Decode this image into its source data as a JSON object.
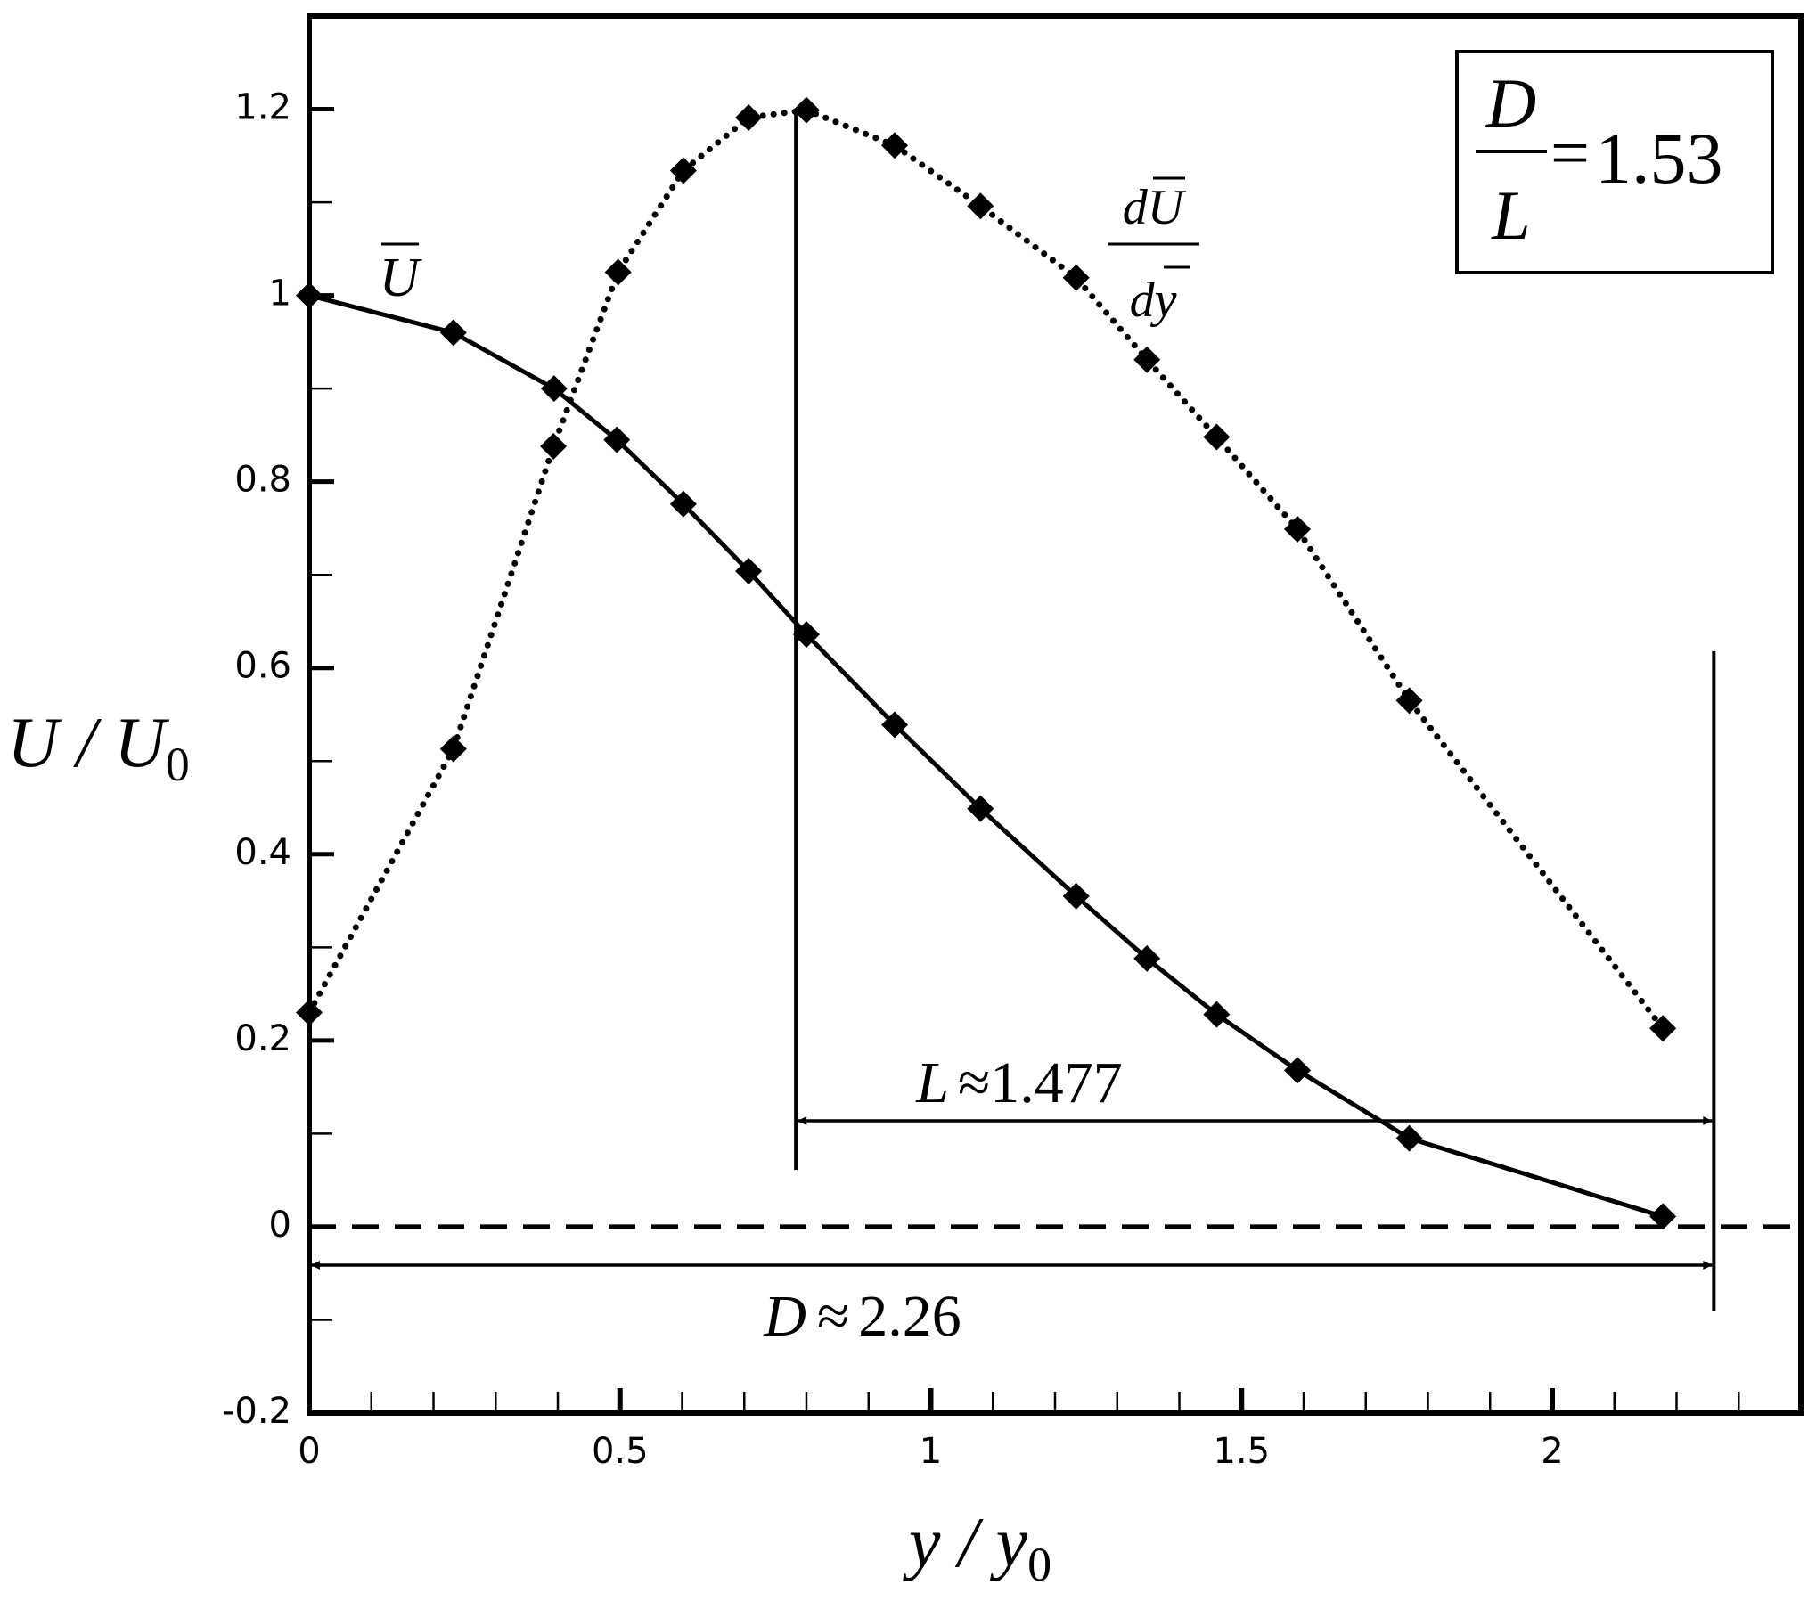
{
  "chart_data": {
    "type": "line",
    "xlabel": {
      "text": "y / y",
      "subscript": "0"
    },
    "ylabel": {
      "text": "U / U",
      "subscript": "0"
    },
    "xlim": [
      0,
      2.4
    ],
    "ylim": [
      -0.2,
      1.3
    ],
    "xticks": [
      0,
      0.5,
      1,
      1.5,
      2
    ],
    "yticks": [
      -0.2,
      0,
      0.2,
      0.4,
      0.6,
      0.8,
      1,
      1.2
    ],
    "x_minor_ticks": [
      0.1,
      0.2,
      0.3,
      0.4,
      0.6,
      0.7,
      0.8,
      0.9,
      1.1,
      1.2,
      1.3,
      1.4,
      1.6,
      1.7,
      1.8,
      1.9,
      2.1,
      2.2,
      2.3
    ],
    "y_minor_ticks": [
      -0.1,
      0.1,
      0.3,
      0.5,
      0.7,
      0.9,
      1.1
    ],
    "series": [
      {
        "name": "U",
        "color": "#000000",
        "style": "solid",
        "x": [
          0,
          0.232,
          0.394,
          0.495,
          0.602,
          0.707,
          0.8,
          0.942,
          1.08,
          1.234,
          1.348,
          1.46,
          1.59,
          1.77,
          2.178
        ],
        "values": [
          1.0,
          0.96,
          0.9,
          0.845,
          0.776,
          0.704,
          0.636,
          0.539,
          0.449,
          0.355,
          0.288,
          0.228,
          0.168,
          0.095,
          0.011
        ]
      },
      {
        "label": {
          "numerator": "dU",
          "denominator": "dy"
        },
        "color": "#000000",
        "style": "dotted",
        "x": [
          0,
          0.232,
          0.393,
          0.497,
          0.602,
          0.707,
          0.8,
          0.942,
          1.08,
          1.234,
          1.348,
          1.46,
          1.59,
          1.77,
          2.178
        ],
        "values": [
          0.23,
          0.513,
          0.838,
          1.025,
          1.134,
          1.191,
          1.199,
          1.161,
          1.096,
          1.019,
          0.931,
          0.848,
          0.749,
          0.565,
          0.213
        ]
      }
    ],
    "annotations": {
      "L": {
        "symbol": "L",
        "relation": "≈",
        "value": 1.477
      },
      "D": {
        "symbol": "D",
        "relation": "≈",
        "value": 2.26
      },
      "ratio": {
        "numerator": "D",
        "denominator": "L",
        "relation": "=",
        "value": 1.53
      }
    }
  }
}
